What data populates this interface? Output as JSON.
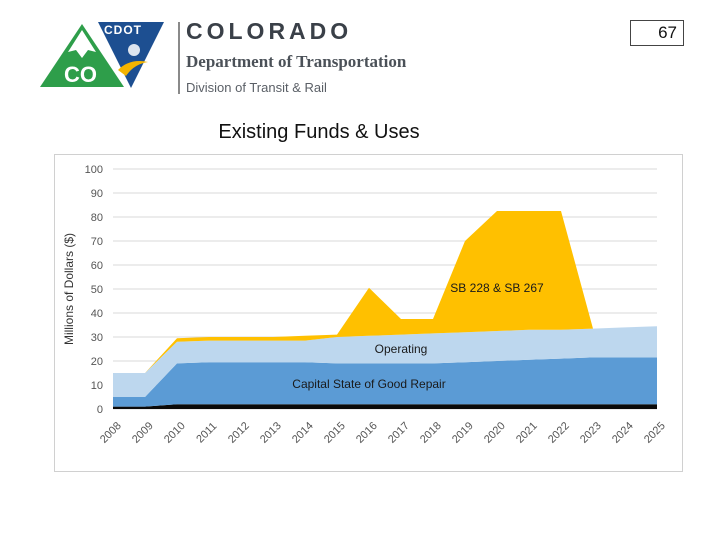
{
  "header": {
    "logo_badge": "CDOT",
    "logo_state": "CO",
    "org_title": "COLORADO",
    "org_dept": "Department of Transportation",
    "org_division": "Division of Transit & Rail"
  },
  "page_number": "67",
  "slide_title": "Existing Funds & Uses",
  "colors": {
    "base": "#0a0a0a",
    "capital": "#5b9bd5",
    "operating": "#bdd7ee",
    "sb": "#ffc000",
    "logo_green": "#2e9e4a",
    "logo_blue": "#1d4f91"
  },
  "chart_data": {
    "type": "area",
    "title": "",
    "xlabel": "",
    "ylabel": "Millions of Dollars ($)",
    "ylim": [
      0,
      100
    ],
    "yticks": [
      "0",
      "10",
      "20",
      "30",
      "40",
      "50",
      "60",
      "70",
      "80",
      "90",
      "100"
    ],
    "grid": true,
    "categories": [
      "2008",
      "2009",
      "2010",
      "2011",
      "2012",
      "2013",
      "2014",
      "2015",
      "2016",
      "2017",
      "2018",
      "2019",
      "2020",
      "2021",
      "2022",
      "2023",
      "2024",
      "2025"
    ],
    "series": [
      {
        "key": "base",
        "name": "",
        "values": [
          1,
          1,
          2,
          2,
          2,
          2,
          2,
          2,
          2,
          2,
          2,
          2,
          2,
          2,
          2,
          2,
          2,
          2
        ]
      },
      {
        "key": "capital",
        "name": "Capital State of Good Repair",
        "values": [
          4,
          4,
          17,
          17.5,
          17.5,
          17.5,
          17.5,
          17,
          17,
          17,
          17,
          17.5,
          18,
          18.5,
          19,
          19.5,
          19.5,
          19.5
        ]
      },
      {
        "key": "operating",
        "name": "Operating",
        "values": [
          10,
          10,
          9,
          9,
          9,
          9,
          9,
          11,
          11.5,
          12,
          12.5,
          12.5,
          12.5,
          12.5,
          12,
          12,
          12.5,
          13
        ]
      },
      {
        "key": "sb",
        "name": "SB 228 & SB 267",
        "values": [
          0,
          0,
          1.5,
          1.5,
          1.5,
          1.5,
          2,
          1,
          20,
          6.5,
          6,
          38,
          50,
          49.5,
          49.5,
          0,
          0,
          0
        ]
      }
    ],
    "annotations": [
      {
        "series": "sb",
        "text": "SB 228 & SB 267"
      },
      {
        "series": "operating",
        "text": "Operating"
      },
      {
        "series": "capital",
        "text": "Capital State of Good Repair"
      }
    ]
  }
}
